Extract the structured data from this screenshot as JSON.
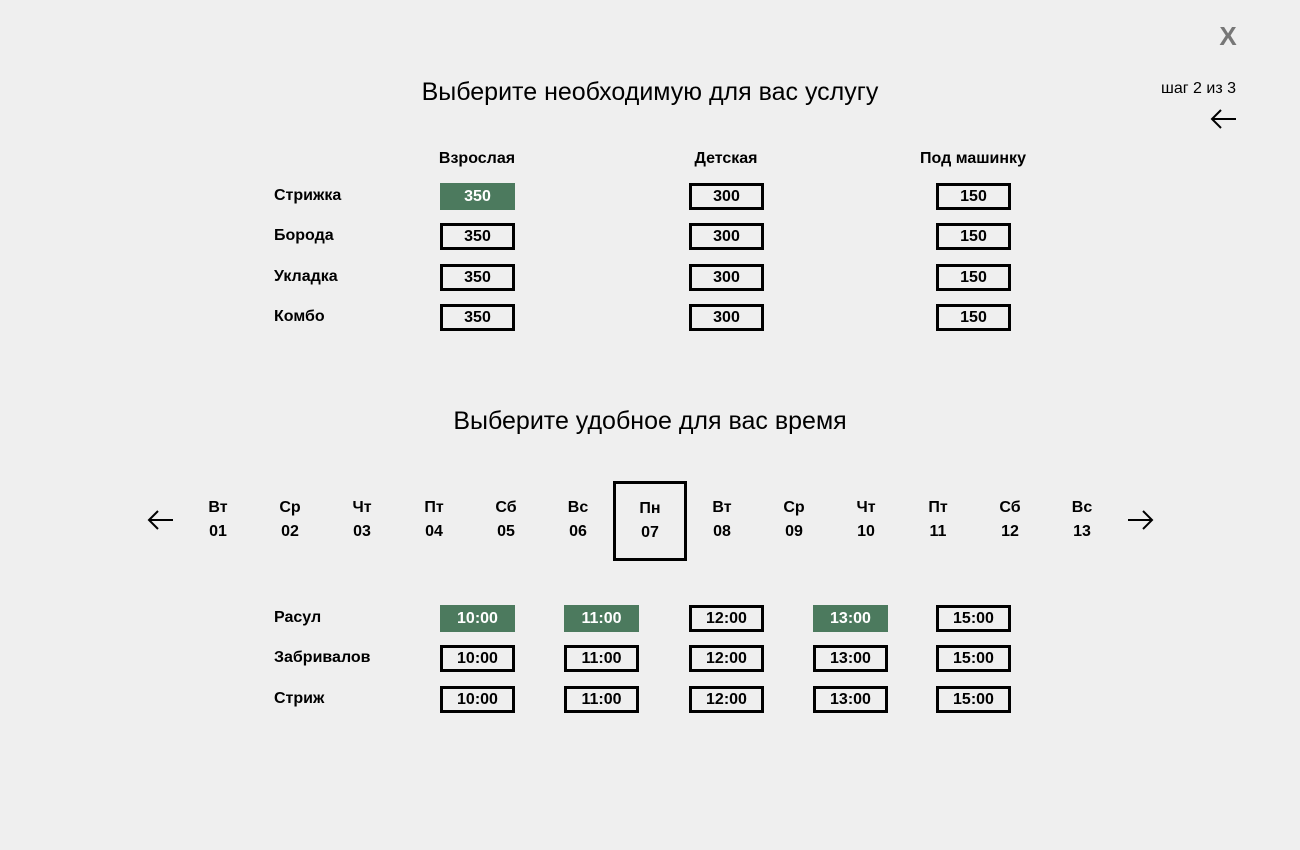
{
  "header": {
    "close_label": "X",
    "step_label": "шаг 2 из 3"
  },
  "services": {
    "title": "Выберите необходимую для вас услугу",
    "columns": [
      "Взрослая",
      "Детская",
      "Под машинку"
    ],
    "rows": [
      {
        "label": "Стрижка",
        "prices": [
          "350",
          "300",
          "150"
        ],
        "selected": 0
      },
      {
        "label": "Борода",
        "prices": [
          "350",
          "300",
          "150"
        ],
        "selected": -1
      },
      {
        "label": "Укладка",
        "prices": [
          "350",
          "300",
          "150"
        ],
        "selected": -1
      },
      {
        "label": "Комбо",
        "prices": [
          "350",
          "300",
          "150"
        ],
        "selected": -1
      }
    ]
  },
  "time": {
    "title": "Выберите удобное для вас время",
    "days": [
      {
        "dow": "Вт",
        "date": "01"
      },
      {
        "dow": "Ср",
        "date": "02"
      },
      {
        "dow": "Чт",
        "date": "03"
      },
      {
        "dow": "Пт",
        "date": "04"
      },
      {
        "dow": "Сб",
        "date": "05"
      },
      {
        "dow": "Вс",
        "date": "06"
      },
      {
        "dow": "Пн",
        "date": "07"
      },
      {
        "dow": "Вт",
        "date": "08"
      },
      {
        "dow": "Ср",
        "date": "09"
      },
      {
        "dow": "Чт",
        "date": "10"
      },
      {
        "dow": "Пт",
        "date": "11"
      },
      {
        "dow": "Сб",
        "date": "12"
      },
      {
        "dow": "Вс",
        "date": "13"
      }
    ],
    "selected_day": 6,
    "masters": [
      {
        "name": "Расул",
        "slots": [
          "10:00",
          "11:00",
          "12:00",
          "13:00",
          "15:00"
        ],
        "selected": [
          0,
          1,
          3
        ]
      },
      {
        "name": "Забривалов",
        "slots": [
          "10:00",
          "11:00",
          "12:00",
          "13:00",
          "15:00"
        ],
        "selected": []
      },
      {
        "name": "Стриж",
        "slots": [
          "10:00",
          "11:00",
          "12:00",
          "13:00",
          "15:00"
        ],
        "selected": []
      }
    ]
  },
  "icons": {
    "back": "arrow-left-icon",
    "prev": "arrow-left-icon",
    "next": "arrow-right-icon"
  },
  "colors": {
    "background": "#efefef",
    "accent": "#4c7a5e",
    "close": "#777777"
  }
}
